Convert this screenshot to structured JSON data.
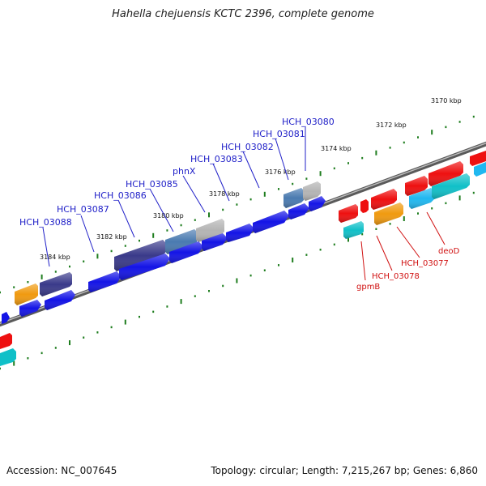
{
  "title": "Hahella chejuensis KCTC 2396, complete genome",
  "footer": {
    "accession": "Accession: NC_007645",
    "summary": "Topology: circular; Length: 7,215,267 bp; Genes: 6,860"
  },
  "colors": {
    "backbone": "#7a7a7a",
    "ticks": "#1e7d1e",
    "label_positive": "#2020c8",
    "label_negative": "#d01010",
    "cds_blue": "#1414e6",
    "cds_navy": "#3a3a8a",
    "cds_steel": "#4a7ab0",
    "cds_gray": "#b4b4b4",
    "cds_orange": "#f09a10",
    "cds_red": "#ee1010",
    "cds_teal": "#10c0c8",
    "cds_sky": "#20b8f0"
  },
  "scale_labels": [
    "3170 kbp",
    "3172 kbp",
    "3174 kbp",
    "3176 kbp",
    "3178 kbp",
    "3180 kbp",
    "3182 kbp",
    "3184 kbp"
  ],
  "genes_positive": [
    {
      "name": "HCH_03088"
    },
    {
      "name": "HCH_03087"
    },
    {
      "name": "HCH_03086"
    },
    {
      "name": "HCH_03085"
    },
    {
      "name": "phnX"
    },
    {
      "name": "HCH_03083"
    },
    {
      "name": "HCH_03082"
    },
    {
      "name": "HCH_03081"
    },
    {
      "name": "HCH_03080"
    }
  ],
  "genes_negative": [
    {
      "name": "gpmB"
    },
    {
      "name": "HCH_03078"
    },
    {
      "name": "HCH_03077"
    },
    {
      "name": "deoD"
    }
  ]
}
